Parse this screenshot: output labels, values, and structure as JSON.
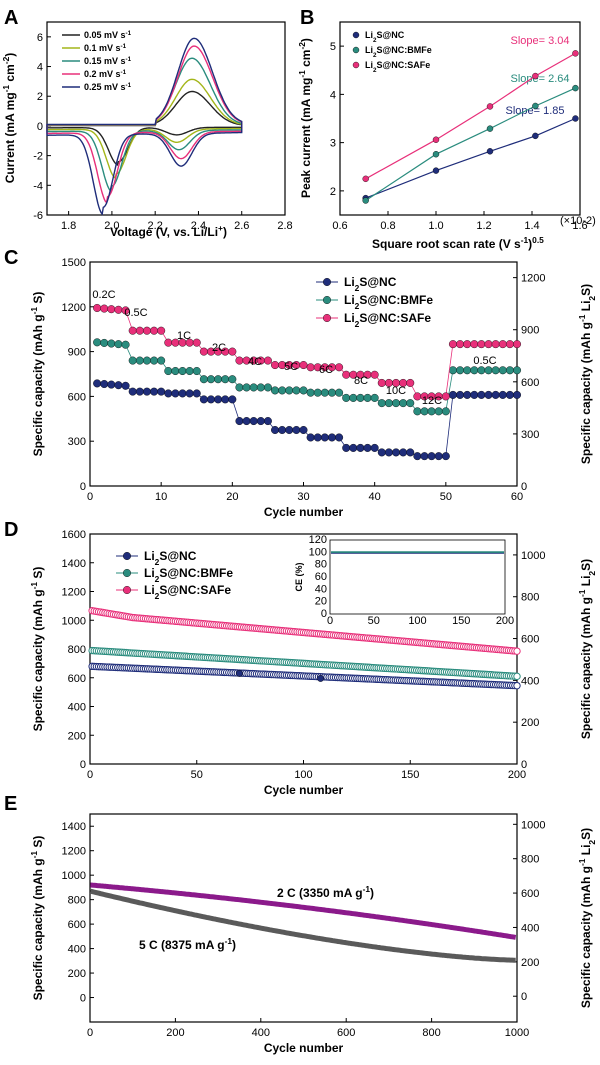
{
  "colors": {
    "nc": "#1f2d7a",
    "bmfe": "#2a8c7e",
    "safe": "#e8307a",
    "c2": "#8b1a8b",
    "c5": "#5a5a5a"
  },
  "panels": [
    {
      "id": "A",
      "letter": "A"
    },
    {
      "id": "B",
      "letter": "B"
    },
    {
      "id": "C",
      "letter": "C"
    },
    {
      "id": "D",
      "letter": "D"
    },
    {
      "id": "E",
      "letter": "E"
    }
  ],
  "chart_data": [
    {
      "panel": "A",
      "type": "line",
      "xlabel": "Voltage (V, vs. Li/Li+)",
      "ylabel": "Current (mA mg-1 cm-2)",
      "xlim": [
        1.7,
        2.8
      ],
      "ylim": [
        -6,
        7
      ],
      "xticks": [
        "1.8",
        "2.0",
        "2.2",
        "2.4",
        "2.6",
        "2.8"
      ],
      "yticks": [
        "-6",
        "-4",
        "-2",
        "0",
        "2",
        "4",
        "6"
      ],
      "legend": [
        "0.05 mV s-1",
        "0.1 mV s-1",
        "0.15 mV s-1",
        "0.2 mV s-1",
        "0.25 mV s-1"
      ],
      "series_colors": [
        "#222222",
        "#a4b61a",
        "#2a8c7e",
        "#e8307a",
        "#1f2d7a"
      ],
      "peaks": {
        "cathodic_low": {
          "x": [
            2.03,
            2.02,
            2.0,
            1.98,
            1.96
          ],
          "y": [
            -2.3,
            -3.0,
            -3.7,
            -4.3,
            -4.9
          ]
        },
        "cathodic_high": {
          "x": [
            2.3,
            2.3,
            2.31,
            2.32,
            2.32
          ],
          "y": [
            -0.5,
            -0.9,
            -1.3,
            -1.8,
            -2.2
          ]
        },
        "anodic": {
          "x": [
            2.37,
            2.37,
            2.37,
            2.38,
            2.38
          ],
          "y": [
            2.3,
            3.1,
            4.5,
            5.3,
            5.8
          ]
        }
      }
    },
    {
      "panel": "B",
      "type": "scatter",
      "xlabel": "Square root scan rate (V s-1)0.5",
      "ylabel": "Peak current (mA mg-1 cm-2)",
      "xlim": [
        0.6,
        1.6
      ],
      "ylim": [
        1.5,
        5.5
      ],
      "xticks": [
        "0.6",
        "0.8",
        "1.0",
        "1.2",
        "1.4",
        "1.6"
      ],
      "x_multiplier": "(×10-2)",
      "yticks": [
        "2",
        "3",
        "4",
        "5"
      ],
      "series": [
        {
          "name": "Li2S@NC",
          "x": [
            0.707,
            1.0,
            1.225,
            1.414,
            1.581
          ],
          "y": [
            1.85,
            2.42,
            2.82,
            3.14,
            3.5
          ],
          "slope_label": "Slope= 1.85"
        },
        {
          "name": "Li2S@NC:BMFe",
          "x": [
            0.707,
            1.0,
            1.225,
            1.414,
            1.581
          ],
          "y": [
            1.8,
            2.76,
            3.29,
            3.76,
            4.13
          ],
          "slope_label": "Slope= 2.64"
        },
        {
          "name": "Li2S@NC:SAFe",
          "x": [
            0.707,
            1.0,
            1.225,
            1.414,
            1.581
          ],
          "y": [
            2.25,
            3.06,
            3.75,
            4.38,
            4.85
          ],
          "slope_label": "Slope= 3.04"
        }
      ]
    },
    {
      "panel": "C",
      "type": "scatter",
      "xlabel": "Cycle number",
      "ylabel": "Specific capacity (mAh g-1 S)",
      "y2label": "Specific capacity (mAh g-1 Li2S)",
      "xlim": [
        0,
        60
      ],
      "ylim": [
        0,
        1500
      ],
      "y2lim": [
        0,
        1290
      ],
      "xticks": [
        "0",
        "10",
        "20",
        "30",
        "40",
        "50",
        "60"
      ],
      "yticks": [
        "0",
        "300",
        "600",
        "900",
        "1200",
        "1500"
      ],
      "y2ticks": [
        "0",
        "300",
        "600",
        "900",
        "1200"
      ],
      "rates": [
        "0.2C",
        "0.5C",
        "1C",
        "2C",
        "4C",
        "5C",
        "6C",
        "8C",
        "10C",
        "12C",
        "0.5C"
      ],
      "series": [
        {
          "name": "Li2S@NC",
          "levels": [
            675,
            632,
            620,
            580,
            435,
            375,
            325,
            255,
            225,
            200,
            610
          ]
        },
        {
          "name": "Li2S@NC:BMFe",
          "levels": [
            950,
            840,
            770,
            715,
            660,
            640,
            625,
            590,
            555,
            500,
            775
          ]
        },
        {
          "name": "Li2S@NC:SAFe",
          "levels": [
            1180,
            1040,
            960,
            900,
            840,
            810,
            795,
            745,
            690,
            600,
            950
          ]
        }
      ]
    },
    {
      "panel": "D",
      "type": "scatter",
      "xlabel": "Cycle number",
      "ylabel": "Specific capacity (mAh g-1 S)",
      "y2label": "Specific capacity (mAh g-1 Li2S)",
      "xlim": [
        0,
        200
      ],
      "ylim": [
        0,
        1600
      ],
      "y2lim": [
        0,
        1100
      ],
      "xticks": [
        "0",
        "50",
        "100",
        "150",
        "200"
      ],
      "yticks": [
        "0",
        "200",
        "400",
        "600",
        "800",
        "1000",
        "1200",
        "1400",
        "1600"
      ],
      "y2ticks": [
        "0",
        "200",
        "400",
        "600",
        "800",
        "1000"
      ],
      "series": [
        {
          "name": "Li2S@NC",
          "start": 680,
          "end": 545
        },
        {
          "name": "Li2S@NC:BMFe",
          "start": 790,
          "end": 610
        },
        {
          "name": "Li2S@NC:SAFe",
          "start": 1045,
          "end": 785
        }
      ],
      "inset": {
        "ylabel": "CE (%)",
        "xlim": [
          0,
          200
        ],
        "ylim": [
          0,
          120
        ],
        "xticks": [
          "0",
          "50",
          "100",
          "150",
          "200"
        ],
        "yticks": [
          "0",
          "20",
          "40",
          "60",
          "80",
          "100",
          "120"
        ],
        "value": 100
      }
    },
    {
      "panel": "E",
      "type": "scatter",
      "xlabel": "Cycle number",
      "ylabel": "Specific capacity (mAh g-1 S)",
      "y2label": "Specific capacity (mAh g-1 Li2S)",
      "xlim": [
        0,
        1000
      ],
      "ylim": [
        -200,
        1500
      ],
      "y2lim": [
        -150,
        1060
      ],
      "xticks": [
        "0",
        "200",
        "400",
        "600",
        "800",
        "1000"
      ],
      "yticks": [
        "0",
        "200",
        "400",
        "600",
        "800",
        "1000",
        "1200",
        "1400"
      ],
      "y2ticks": [
        "0",
        "200",
        "400",
        "600",
        "800",
        "1000"
      ],
      "series": [
        {
          "name": "2 C (3350 mA g-1)",
          "start": 920,
          "end": 490
        },
        {
          "name": "5 C (8375 mA g-1)",
          "start": 870,
          "end": 305
        }
      ]
    }
  ]
}
